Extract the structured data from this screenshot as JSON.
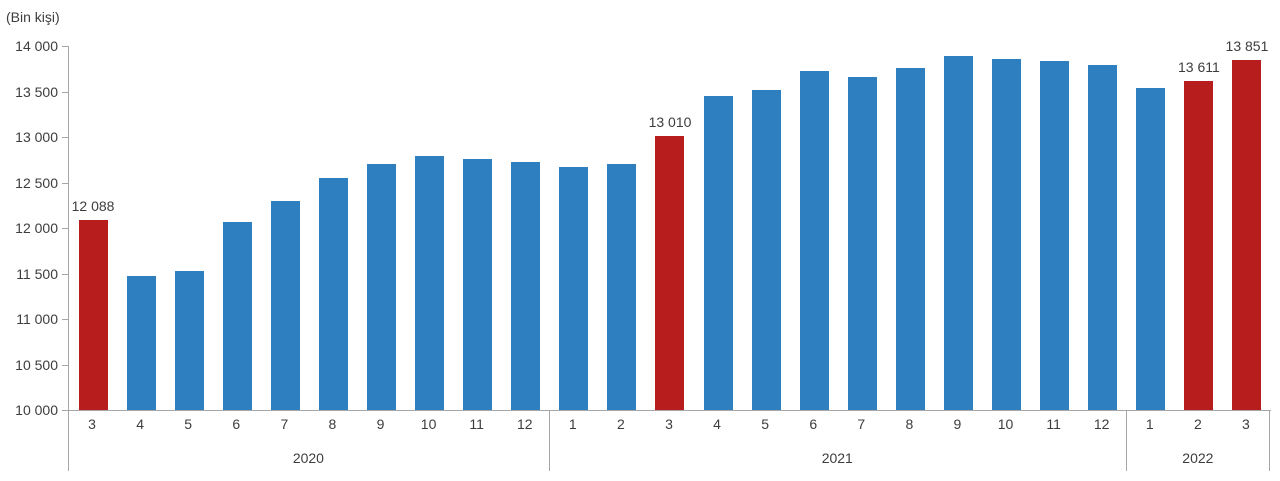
{
  "chart_data": {
    "type": "bar",
    "title": "",
    "ylabel": "(Bin kişi)",
    "xlabel": "",
    "ylim": [
      10000,
      14000
    ],
    "grid": false,
    "legend": "none",
    "colors": {
      "bar": "#2e7fc0",
      "highlight": "#b81d1e",
      "axis": "#a6a6a6",
      "text": "#3d3d3d"
    },
    "yticks": [
      {
        "value": 14000,
        "label": "14 000"
      },
      {
        "value": 13500,
        "label": "13 500"
      },
      {
        "value": 13000,
        "label": "13 000"
      },
      {
        "value": 12500,
        "label": "12 500"
      },
      {
        "value": 12000,
        "label": "12 000"
      },
      {
        "value": 11500,
        "label": "11 500"
      },
      {
        "value": 11000,
        "label": "11 000"
      },
      {
        "value": 10500,
        "label": "10 500"
      },
      {
        "value": 10000,
        "label": "10 000"
      }
    ],
    "groups": [
      {
        "year": "2020",
        "bars": [
          {
            "month": "3",
            "value": 12088,
            "highlighted": true,
            "label": "12 088"
          },
          {
            "month": "4",
            "value": 11470,
            "highlighted": false
          },
          {
            "month": "5",
            "value": 11530,
            "highlighted": false
          },
          {
            "month": "6",
            "value": 12070,
            "highlighted": false
          },
          {
            "month": "7",
            "value": 12300,
            "highlighted": false
          },
          {
            "month": "8",
            "value": 12550,
            "highlighted": false
          },
          {
            "month": "9",
            "value": 12700,
            "highlighted": false
          },
          {
            "month": "10",
            "value": 12790,
            "highlighted": false
          },
          {
            "month": "11",
            "value": 12760,
            "highlighted": false
          },
          {
            "month": "12",
            "value": 12720,
            "highlighted": false
          }
        ]
      },
      {
        "year": "2021",
        "bars": [
          {
            "month": "1",
            "value": 12670,
            "highlighted": false
          },
          {
            "month": "2",
            "value": 12700,
            "highlighted": false
          },
          {
            "month": "3",
            "value": 13010,
            "highlighted": true,
            "label": "13 010"
          },
          {
            "month": "4",
            "value": 13450,
            "highlighted": false
          },
          {
            "month": "5",
            "value": 13520,
            "highlighted": false
          },
          {
            "month": "6",
            "value": 13730,
            "highlighted": false
          },
          {
            "month": "7",
            "value": 13660,
            "highlighted": false
          },
          {
            "month": "8",
            "value": 13760,
            "highlighted": false
          },
          {
            "month": "9",
            "value": 13890,
            "highlighted": false
          },
          {
            "month": "10",
            "value": 13860,
            "highlighted": false
          },
          {
            "month": "11",
            "value": 13830,
            "highlighted": false
          },
          {
            "month": "12",
            "value": 13790,
            "highlighted": false
          }
        ]
      },
      {
        "year": "2022",
        "bars": [
          {
            "month": "1",
            "value": 13540,
            "highlighted": false
          },
          {
            "month": "2",
            "value": 13611,
            "highlighted": true,
            "label": "13 611"
          },
          {
            "month": "3",
            "value": 13851,
            "highlighted": true,
            "label": "13 851"
          }
        ]
      }
    ]
  }
}
